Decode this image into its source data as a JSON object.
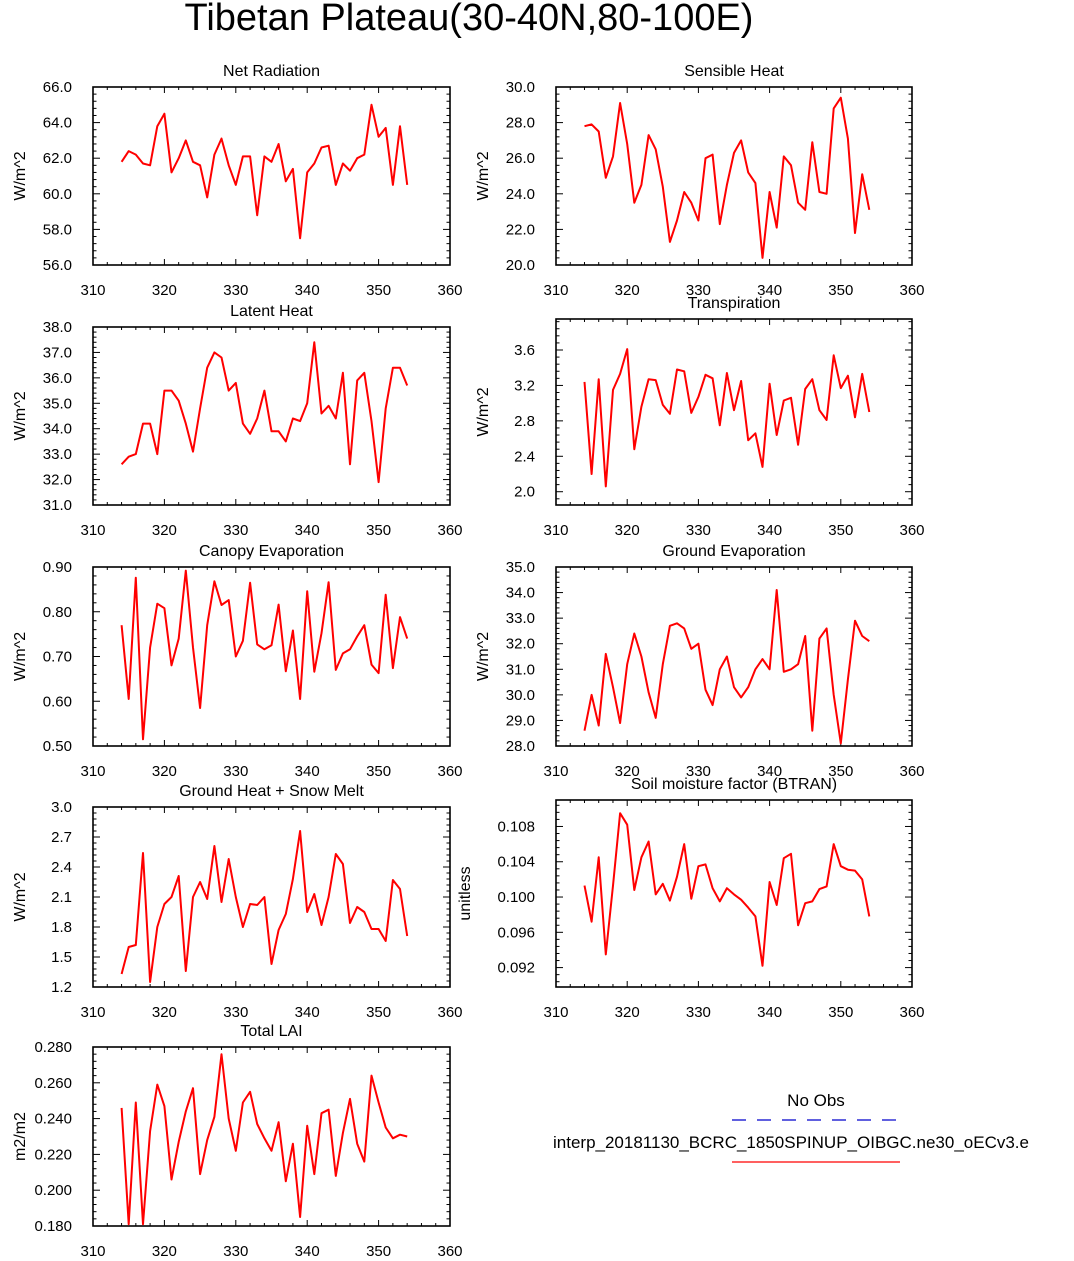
{
  "title": "Tibetan Plateau(30-40N,80-100E)",
  "colors": {
    "model": "#ff0000",
    "obs": "#0000cc",
    "axis": "#000000"
  },
  "legend": {
    "obs_label": "No Obs",
    "model_label": "interp_20181130_BCRC_1850SPINUP_OIBGC.ne30_oECv3.e"
  },
  "chart_data": [
    {
      "type": "line",
      "title": "Net Radiation",
      "ylabel": "W/m^2",
      "xlim": [
        310,
        360
      ],
      "xticks": [
        "310",
        "320",
        "330",
        "340",
        "350",
        "360"
      ],
      "ylim": [
        56.0,
        66.0
      ],
      "yticks": [
        "56.0",
        "58.0",
        "60.0",
        "62.0",
        "64.0",
        "66.0"
      ],
      "x_start": 314,
      "series": [
        {
          "name": "model",
          "values": [
            61.8,
            62.4,
            62.2,
            61.7,
            61.6,
            63.8,
            64.5,
            61.2,
            62.0,
            63.0,
            61.8,
            61.6,
            59.8,
            62.2,
            63.1,
            61.6,
            60.5,
            62.1,
            62.1,
            58.8,
            62.1,
            61.8,
            62.8,
            60.7,
            61.4,
            57.5,
            61.2,
            61.7,
            62.6,
            62.7,
            60.5,
            61.7,
            61.3,
            62.0,
            62.2,
            65.0,
            63.2,
            63.7,
            60.5,
            63.8,
            60.5
          ]
        }
      ]
    },
    {
      "type": "line",
      "title": "Sensible Heat",
      "ylabel": "W/m^2",
      "xlim": [
        310,
        360
      ],
      "xticks": [
        "310",
        "320",
        "330",
        "340",
        "350",
        "360"
      ],
      "ylim": [
        20.0,
        30.0
      ],
      "yticks": [
        "20.0",
        "22.0",
        "24.0",
        "26.0",
        "28.0",
        "30.0"
      ],
      "x_start": 314,
      "series": [
        {
          "name": "model",
          "values": [
            27.8,
            27.9,
            27.5,
            24.9,
            26.1,
            29.1,
            26.8,
            23.5,
            24.5,
            27.3,
            26.5,
            24.4,
            21.3,
            22.5,
            24.1,
            23.5,
            22.5,
            26.0,
            26.2,
            22.3,
            24.5,
            26.3,
            27.0,
            25.2,
            24.6,
            20.4,
            24.1,
            22.1,
            26.1,
            25.6,
            23.5,
            23.1,
            26.9,
            24.1,
            24.0,
            28.8,
            29.4,
            27.1,
            21.8,
            25.1,
            23.1
          ]
        }
      ]
    },
    {
      "type": "line",
      "title": "Latent Heat",
      "ylabel": "W/m^2",
      "xlim": [
        310,
        360
      ],
      "xticks": [
        "310",
        "320",
        "330",
        "340",
        "350",
        "360"
      ],
      "ylim": [
        31.0,
        38.0
      ],
      "yticks": [
        "31.0",
        "32.0",
        "33.0",
        "34.0",
        "35.0",
        "36.0",
        "37.0",
        "38.0"
      ],
      "x_start": 314,
      "series": [
        {
          "name": "model",
          "values": [
            32.6,
            32.9,
            33.0,
            34.2,
            34.2,
            33.0,
            35.5,
            35.5,
            35.1,
            34.2,
            33.1,
            34.8,
            36.4,
            37.0,
            36.8,
            35.5,
            35.8,
            34.2,
            33.8,
            34.4,
            35.5,
            33.9,
            33.9,
            33.5,
            34.4,
            34.3,
            35.0,
            37.4,
            34.6,
            34.9,
            34.4,
            36.2,
            32.6,
            35.9,
            36.2,
            34.3,
            31.9,
            34.8,
            36.4,
            36.4,
            35.7
          ]
        }
      ]
    },
    {
      "type": "line",
      "title": "Transpiration",
      "ylabel": "W/m^2",
      "xlim": [
        310,
        360
      ],
      "xticks": [
        "310",
        "320",
        "330",
        "340",
        "350",
        "360"
      ],
      "ylim": [
        1.85,
        3.95
      ],
      "yticks": [
        "2.0",
        "2.4",
        "2.8",
        "3.2",
        "3.6"
      ],
      "ytick_values": [
        2.0,
        2.4,
        2.8,
        3.2,
        3.6
      ],
      "x_start": 314,
      "series": [
        {
          "name": "model",
          "values": [
            3.24,
            2.2,
            3.27,
            2.06,
            3.15,
            3.33,
            3.61,
            2.48,
            2.96,
            3.27,
            3.26,
            2.98,
            2.88,
            3.38,
            3.36,
            2.89,
            3.07,
            3.32,
            3.28,
            2.75,
            3.34,
            2.92,
            3.25,
            2.58,
            2.66,
            2.28,
            3.22,
            2.64,
            3.03,
            3.06,
            2.53,
            3.16,
            3.27,
            2.92,
            2.81,
            3.54,
            3.17,
            3.31,
            2.84,
            3.33,
            2.9
          ]
        }
      ]
    },
    {
      "type": "line",
      "title": "Canopy Evaporation",
      "ylabel": "W/m^2",
      "xlim": [
        310,
        360
      ],
      "xticks": [
        "310",
        "320",
        "330",
        "340",
        "350",
        "360"
      ],
      "ylim": [
        0.5,
        0.9
      ],
      "yticks": [
        "0.50",
        "0.60",
        "0.70",
        "0.80",
        "0.90"
      ],
      "x_start": 314,
      "series": [
        {
          "name": "model",
          "values": [
            0.77,
            0.605,
            0.876,
            0.515,
            0.72,
            0.818,
            0.808,
            0.68,
            0.74,
            0.892,
            0.72,
            0.585,
            0.77,
            0.868,
            0.815,
            0.826,
            0.7,
            0.735,
            0.865,
            0.727,
            0.716,
            0.725,
            0.816,
            0.667,
            0.758,
            0.605,
            0.846,
            0.666,
            0.752,
            0.866,
            0.67,
            0.707,
            0.716,
            0.745,
            0.77,
            0.682,
            0.663,
            0.838,
            0.674,
            0.788,
            0.74
          ]
        }
      ]
    },
    {
      "type": "line",
      "title": "Ground Evaporation",
      "ylabel": "W/m^2",
      "xlim": [
        310,
        360
      ],
      "xticks": [
        "310",
        "320",
        "330",
        "340",
        "350",
        "360"
      ],
      "ylim": [
        28.0,
        35.0
      ],
      "yticks": [
        "28.0",
        "29.0",
        "30.0",
        "31.0",
        "32.0",
        "33.0",
        "34.0",
        "35.0"
      ],
      "x_start": 314,
      "series": [
        {
          "name": "model",
          "values": [
            28.6,
            30.0,
            28.8,
            31.6,
            30.3,
            28.9,
            31.2,
            32.4,
            31.5,
            30.1,
            29.1,
            31.2,
            32.7,
            32.8,
            32.6,
            31.8,
            32.0,
            30.2,
            29.6,
            31.0,
            31.5,
            30.3,
            29.9,
            30.3,
            31.0,
            31.4,
            31.0,
            34.1,
            30.9,
            31.0,
            31.2,
            32.3,
            28.6,
            32.2,
            32.6,
            30.0,
            28.1,
            30.6,
            32.9,
            32.3,
            32.1
          ]
        }
      ]
    },
    {
      "type": "line",
      "title": "Ground Heat + Snow Melt",
      "ylabel": "W/m^2",
      "xlim": [
        310,
        360
      ],
      "xticks": [
        "310",
        "320",
        "330",
        "340",
        "350",
        "360"
      ],
      "ylim": [
        1.2,
        3.0
      ],
      "yticks": [
        "1.2",
        "1.5",
        "1.8",
        "2.1",
        "2.4",
        "2.7",
        "3.0"
      ],
      "x_start": 314,
      "series": [
        {
          "name": "model",
          "values": [
            1.33,
            1.6,
            1.62,
            2.54,
            1.25,
            1.8,
            2.03,
            2.1,
            2.31,
            1.36,
            2.1,
            2.25,
            2.08,
            2.61,
            2.05,
            2.48,
            2.1,
            1.8,
            2.03,
            2.02,
            2.1,
            1.43,
            1.77,
            1.93,
            2.28,
            2.76,
            1.95,
            2.13,
            1.82,
            2.1,
            2.53,
            2.43,
            1.84,
            2.0,
            1.95,
            1.78,
            1.78,
            1.66,
            2.27,
            2.18,
            1.71
          ]
        }
      ]
    },
    {
      "type": "line",
      "title": "Soil moisture factor (BTRAN)",
      "ylabel": "unitless",
      "xlim": [
        310,
        360
      ],
      "xticks": [
        "310",
        "320",
        "330",
        "340",
        "350",
        "360"
      ],
      "ylim": [
        0.0898,
        0.111
      ],
      "yticks": [
        "0.092",
        "0.096",
        "0.100",
        "0.104",
        "0.108"
      ],
      "ytick_values": [
        0.092,
        0.096,
        0.1,
        0.104,
        0.108
      ],
      "x_start": 314,
      "series": [
        {
          "name": "model",
          "values": [
            0.1013,
            0.0972,
            0.1045,
            0.0935,
            0.1013,
            0.1095,
            0.1082,
            0.1008,
            0.1045,
            0.1063,
            0.1003,
            0.1015,
            0.0996,
            0.1023,
            0.106,
            0.0998,
            0.1035,
            0.1037,
            0.101,
            0.0995,
            0.101,
            0.1003,
            0.0997,
            0.0988,
            0.0978,
            0.0922,
            0.1017,
            0.0991,
            0.1044,
            0.1049,
            0.0968,
            0.0993,
            0.0995,
            0.1009,
            0.1012,
            0.106,
            0.1035,
            0.1031,
            0.103,
            0.102,
            0.0978
          ]
        }
      ]
    },
    {
      "type": "line",
      "title": "Total LAI",
      "ylabel": "m2/m2",
      "xlim": [
        310,
        360
      ],
      "xticks": [
        "310",
        "320",
        "330",
        "340",
        "350",
        "360"
      ],
      "ylim": [
        0.18,
        0.28
      ],
      "yticks": [
        "0.180",
        "0.200",
        "0.220",
        "0.240",
        "0.260",
        "0.280"
      ],
      "x_start": 314,
      "series": [
        {
          "name": "model",
          "values": [
            0.246,
            0.181,
            0.249,
            0.181,
            0.233,
            0.259,
            0.247,
            0.206,
            0.227,
            0.244,
            0.257,
            0.209,
            0.228,
            0.241,
            0.276,
            0.24,
            0.222,
            0.249,
            0.255,
            0.237,
            0.229,
            0.222,
            0.238,
            0.205,
            0.226,
            0.185,
            0.236,
            0.209,
            0.243,
            0.245,
            0.208,
            0.232,
            0.251,
            0.226,
            0.216,
            0.264,
            0.249,
            0.235,
            0.229,
            0.231,
            0.23
          ]
        }
      ]
    }
  ]
}
